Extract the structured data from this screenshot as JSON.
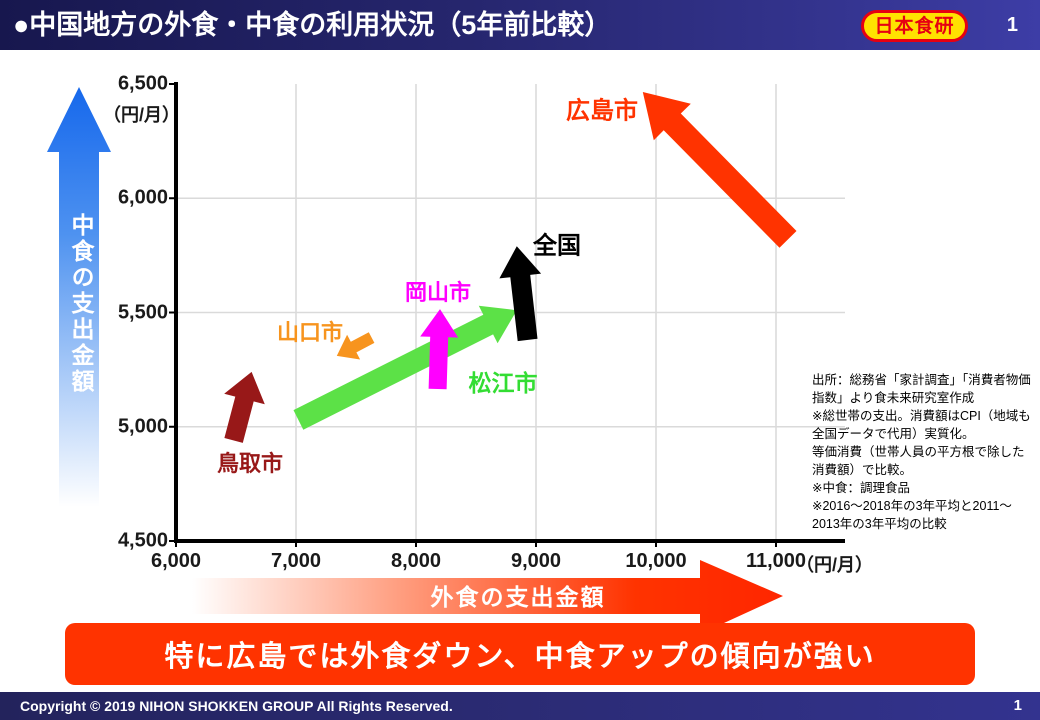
{
  "header": {
    "title": "●中国地方の外食・中食の利用状況（5年前比較）",
    "logo": "日本食研",
    "page_number": "1"
  },
  "chart_data": {
    "type": "scatter",
    "title": "中国地方の外食・中食の利用状況（5年前比較）",
    "xlabel": "外食の支出金額",
    "ylabel": "中食の支出金額",
    "x_unit": "（円/月）",
    "y_unit": "（円/月）",
    "xlim": [
      6000,
      11600
    ],
    "ylim": [
      4500,
      6500
    ],
    "x_ticks": [
      6000,
      7000,
      8000,
      9000,
      10000,
      11000
    ],
    "y_ticks": [
      4500,
      5000,
      5500,
      6000,
      6500
    ],
    "x_tick_labels": [
      "6,000",
      "7,000",
      "8,000",
      "9,000",
      "10,000",
      "11,000"
    ],
    "y_tick_labels": [
      "4,500",
      "5,000",
      "5,500",
      "6,000",
      "6,500"
    ],
    "grid": true,
    "legend_position": "none",
    "series_meaning": "arrow from 2011~2013 3-year average to 2016~2018 3-year average (外食支出, 中食支出)",
    "series": [
      {
        "name": "鳥取市",
        "color": "#981818",
        "from": [
          6480,
          4940
        ],
        "to": [
          6630,
          5240
        ]
      },
      {
        "name": "山口市",
        "color": "#F7941E",
        "from": [
          7630,
          5390
        ],
        "to": [
          7340,
          5310
        ]
      },
      {
        "name": "松江市",
        "color": "#5CE147",
        "label_color": "#33DD33",
        "from": [
          7020,
          5030
        ],
        "to": [
          8840,
          5510
        ]
      },
      {
        "name": "岡山市",
        "color": "#FF00FF",
        "from": [
          8180,
          5165
        ],
        "to": [
          8200,
          5515
        ]
      },
      {
        "name": "全国",
        "color": "#000000",
        "from": [
          8930,
          5380
        ],
        "to": [
          8840,
          5790
        ]
      },
      {
        "name": "広島市",
        "color": "#FF3300",
        "from": [
          11100,
          5820
        ],
        "to": [
          9890,
          6465
        ]
      }
    ]
  },
  "source_note": "出所：総務省「家計調査」「消費者物価指数」より食未来研究室作成\n※総世帯の支出。消費額はCPI（地域も全国データで代用）実質化。\n等価消費（世帯人員の平方根で除した消費額）で比較。\n※中食：調理食品\n※2016～2018年の3年平均と2011～2013年の3年平均の比較",
  "banner": {
    "text": "特に広島では外食ダウン、中食アップの傾向が強い"
  },
  "footer": {
    "copyright": "Copyright © 2019 NIHON SHOKKEN GROUP All Rights Reserved.",
    "page_number": "1"
  },
  "colors": {
    "header_navy": "#17174E",
    "accent_red": "#FF3300",
    "logo_yellow": "#FFE100",
    "logo_red": "#E60012",
    "y_arrow_blue": "#1668EC",
    "gridline": "#DADADA"
  }
}
